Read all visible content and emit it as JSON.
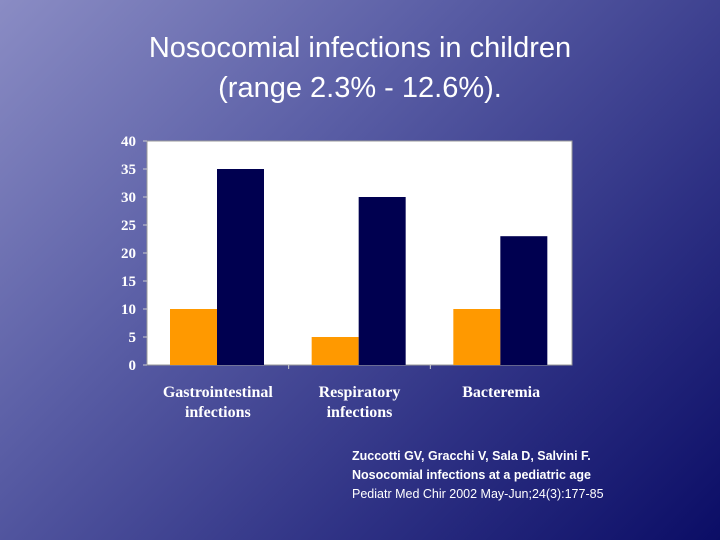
{
  "slide": {
    "title_line1": "Nosocomial infections in children",
    "title_line2": "(range 2.3% - 12.6%)."
  },
  "chart_data": {
    "type": "bar",
    "title": "",
    "xlabel": "",
    "ylabel": "",
    "categories": [
      [
        "Gastrointestinal",
        "infections"
      ],
      [
        "Respiratory",
        "infections"
      ],
      [
        "Bacteremia"
      ]
    ],
    "series": [
      {
        "name": "series-1",
        "color": "#ff9900",
        "values": [
          10,
          5,
          10
        ]
      },
      {
        "name": "series-2",
        "color": "#000050",
        "values": [
          35,
          30,
          23
        ]
      }
    ],
    "ylim": [
      0,
      40
    ],
    "yticks": [
      0,
      5,
      10,
      15,
      20,
      25,
      30,
      35,
      40
    ],
    "grid": false,
    "plot_background": "#ffffff",
    "legend": "none"
  },
  "citation": {
    "line1": "Zuccotti GV, Gracchi V, Sala D, Salvini F.",
    "line2": "Nosocomial infections at a pediatric age",
    "line3": "Pediatr Med Chir 2002 May-Jun;24(3):177-85"
  }
}
